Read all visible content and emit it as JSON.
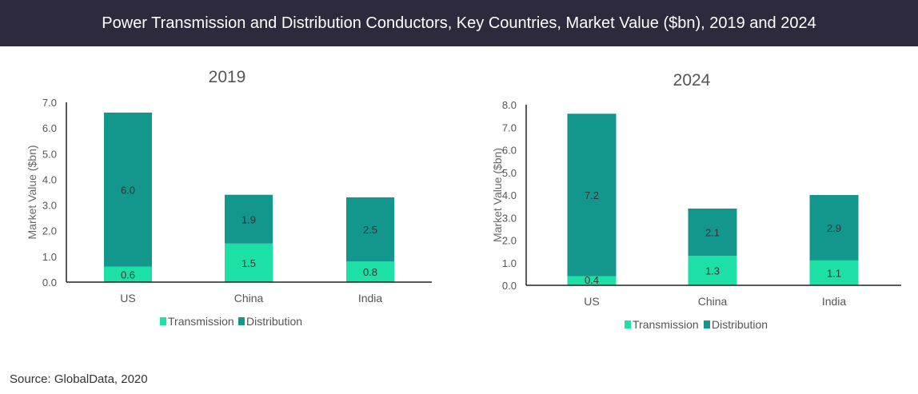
{
  "header": {
    "title": "Power Transmission and Distribution Conductors, Key Countries, Market Value ($bn), 2019 and 2024"
  },
  "source": "Source: GlobalData, 2020",
  "colors": {
    "transmission": "#1de0a6",
    "distribution": "#13968b",
    "header_bg": "#2e2a3d"
  },
  "chart_data": [
    {
      "type": "bar",
      "stacked": true,
      "title": "2019",
      "xlabel": "",
      "ylabel": "Market Value ($bn)",
      "ylim": [
        0,
        7
      ],
      "yticks": [
        "0.0",
        "1.0",
        "2.0",
        "3.0",
        "4.0",
        "5.0",
        "6.0",
        "7.0"
      ],
      "categories": [
        "US",
        "China",
        "India"
      ],
      "series": [
        {
          "name": "Transmission",
          "values": [
            0.6,
            1.5,
            0.8
          ],
          "labels": [
            "0.6",
            "1.5",
            "0.8"
          ]
        },
        {
          "name": "Distribution",
          "values": [
            6.0,
            1.9,
            2.5
          ],
          "labels": [
            "6.0",
            "1.9",
            "2.5"
          ]
        }
      ],
      "legend": "bottom",
      "grid": false
    },
    {
      "type": "bar",
      "stacked": true,
      "title": "2024",
      "xlabel": "",
      "ylabel": "Market Value ($bn)",
      "ylim": [
        0,
        8
      ],
      "yticks": [
        "0.0",
        "1.0",
        "2.0",
        "3.0",
        "4.0",
        "5.0",
        "6.0",
        "7.0",
        "8.0"
      ],
      "categories": [
        "US",
        "China",
        "India"
      ],
      "series": [
        {
          "name": "Transmission",
          "values": [
            0.4,
            1.3,
            1.1
          ],
          "labels": [
            "0.4",
            "1.3",
            "1.1"
          ]
        },
        {
          "name": "Distribution",
          "values": [
            7.2,
            2.1,
            2.9
          ],
          "labels": [
            "7.2",
            "2.1",
            "2.9"
          ]
        }
      ],
      "legend": "bottom",
      "grid": false
    }
  ]
}
